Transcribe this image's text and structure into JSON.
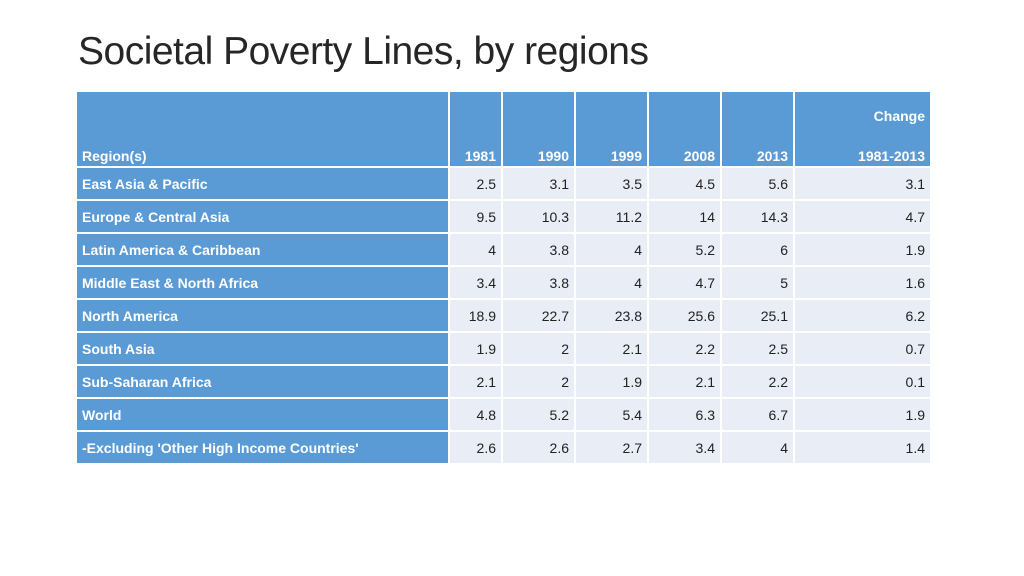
{
  "title": "Societal Poverty Lines, by regions",
  "table": {
    "header": {
      "region": "Region(s)",
      "years": [
        "1981",
        "1990",
        "1999",
        "2008",
        "2013"
      ],
      "change": [
        "Change",
        "1981-2013"
      ]
    },
    "rows": [
      {
        "region": "East Asia & Pacific",
        "values": [
          2.5,
          3.1,
          3.5,
          4.5,
          5.6,
          3.1
        ]
      },
      {
        "region": "Europe & Central Asia",
        "values": [
          9.5,
          10.3,
          11.2,
          14,
          14.3,
          4.7
        ]
      },
      {
        "region": "Latin America & Caribbean",
        "values": [
          4,
          3.8,
          4,
          5.2,
          6,
          1.9
        ]
      },
      {
        "region": "Middle East & North Africa",
        "values": [
          3.4,
          3.8,
          4,
          4.7,
          5,
          1.6
        ]
      },
      {
        "region": "North America",
        "values": [
          18.9,
          22.7,
          23.8,
          25.6,
          25.1,
          6.2
        ]
      },
      {
        "region": "South Asia",
        "values": [
          1.9,
          2,
          2.1,
          2.2,
          2.5,
          0.7
        ]
      },
      {
        "region": "Sub-Saharan Africa",
        "values": [
          2.1,
          2,
          1.9,
          2.1,
          2.2,
          0.1
        ]
      },
      {
        "region": "World",
        "values": [
          4.8,
          5.2,
          5.4,
          6.3,
          6.7,
          1.9
        ]
      },
      {
        "region": "-Excluding 'Other High Income Countries'",
        "values": [
          2.6,
          2.6,
          2.7,
          3.4,
          4,
          1.4
        ]
      }
    ]
  }
}
